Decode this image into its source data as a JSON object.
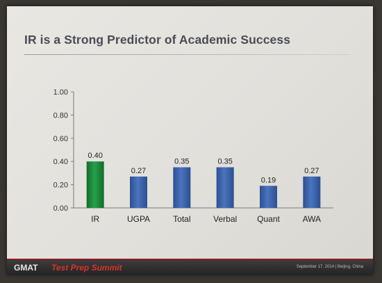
{
  "slide": {
    "title": "IR is a Strong Predictor of Academic Success"
  },
  "footer": {
    "brand": "GMAT",
    "event": "Test Prep Summit",
    "meta": "September 17, 2014 | Beijing, China"
  },
  "chart_data": {
    "type": "bar",
    "title": "",
    "xlabel": "",
    "ylabel": "",
    "categories": [
      "IR",
      "UGPA",
      "Total",
      "Verbal",
      "Quant",
      "AWA"
    ],
    "values": [
      0.4,
      0.27,
      0.35,
      0.35,
      0.19,
      0.27
    ],
    "value_labels": [
      "0.40",
      "0.27",
      "0.35",
      "0.35",
      "0.19",
      "0.27"
    ],
    "ylim": [
      0,
      1
    ],
    "yticks": [
      0,
      0.2,
      0.4,
      0.6,
      0.8,
      1.0
    ],
    "ytick_labels": [
      "0.00",
      "0.20",
      "0.40",
      "0.60",
      "0.80",
      "1.00"
    ],
    "grid": false,
    "legend": "none",
    "colors": {
      "highlight": "#1f8a3c",
      "default": "#3a62a8"
    },
    "highlight_index": 0
  }
}
